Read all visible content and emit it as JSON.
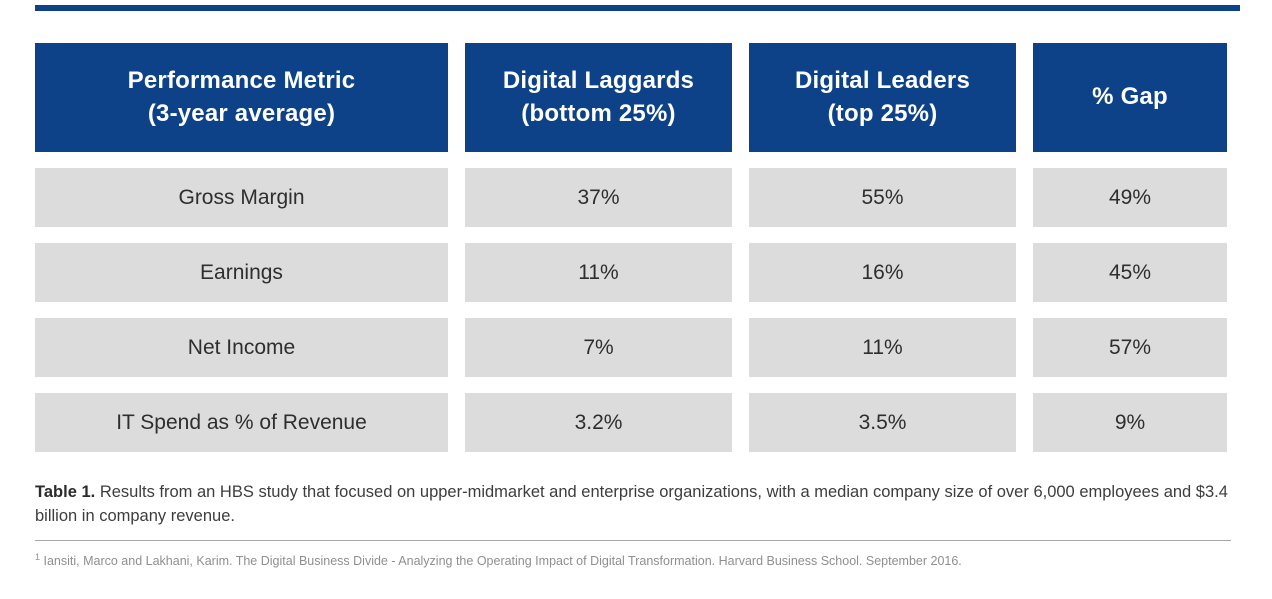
{
  "colors": {
    "header_blue": "#0d4289",
    "row_gray": "#dcdcdc",
    "header_text": "#ffffff",
    "cell_text": "#2e2e2e",
    "caption_text": "#3d3d3d",
    "footnote_text": "#8f8f8f",
    "divider_gray": "#a8a8a8"
  },
  "chart_data": {
    "type": "table",
    "columns": [
      {
        "line1": "Performance Metric",
        "line2": "(3-year average)"
      },
      {
        "line1": "Digital Laggards",
        "line2": "(bottom 25%)"
      },
      {
        "line1": "Digital Leaders",
        "line2": "(top 25%)"
      },
      {
        "line1": "% Gap",
        "line2": ""
      }
    ],
    "rows": [
      {
        "metric": "Gross Margin",
        "laggards": "37%",
        "leaders": "55%",
        "gap": "49%"
      },
      {
        "metric": "Earnings",
        "laggards": "11%",
        "leaders": "16%",
        "gap": "45%"
      },
      {
        "metric": "Net Income",
        "laggards": "7%",
        "leaders": "11%",
        "gap": "57%"
      },
      {
        "metric": "IT Spend as % of Revenue",
        "laggards": "3.2%",
        "leaders": "3.5%",
        "gap": "9%"
      }
    ],
    "caption": {
      "label": "Table 1.",
      "text": "Results from an HBS study that focused on upper-midmarket and enterprise organizations, with a median company size of over 6,000 employees and $3.4 billion in company revenue."
    },
    "footnote": {
      "marker": "1",
      "text": "Iansiti, Marco and Lakhani, Karim. The Digital Business Divide - Analyzing the Operating Impact of Digital Transformation. Harvard Business School. September 2016."
    }
  }
}
